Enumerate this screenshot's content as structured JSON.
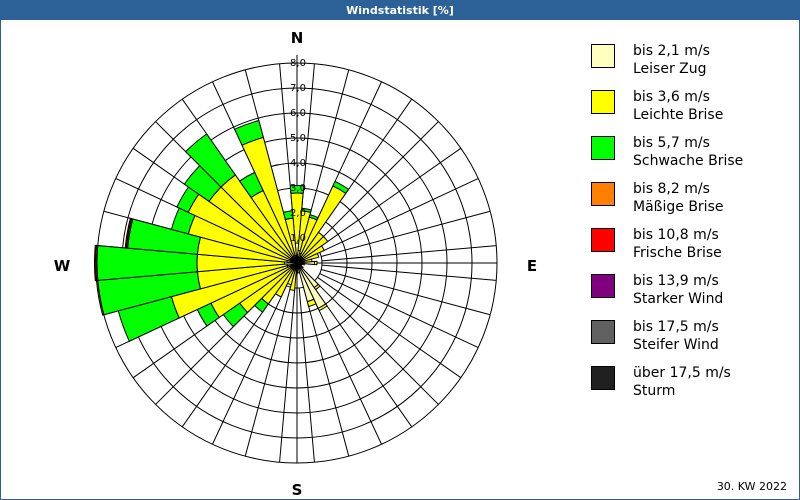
{
  "window": {
    "title": "Windstatistik [%]"
  },
  "footer": "30. KW 2022",
  "chart_data": {
    "type": "windrose",
    "title": "Windstatistik [%]",
    "unit": "%",
    "rmax": 8.0,
    "ring_labels": [
      "1,0",
      "2,0",
      "3,0",
      "4,0",
      "5,0",
      "6,0",
      "7,0",
      "8,0"
    ],
    "compass": {
      "n": "N",
      "e": "E",
      "s": "S",
      "w": "W"
    },
    "classes": [
      {
        "label": "bis 2,1 m/s",
        "name": "Leiser Zug",
        "color": "#ffffc0"
      },
      {
        "label": "bis 3,6 m/s",
        "name": "Leichte Brise",
        "color": "#ffff00"
      },
      {
        "label": "bis 5,7 m/s",
        "name": "Schwache Brise",
        "color": "#00ff00"
      },
      {
        "label": "bis 8,2 m/s",
        "name": "Mäßige Brise",
        "color": "#ff8000"
      },
      {
        "label": "bis 10,8 m/s",
        "name": "Frische Brise",
        "color": "#ff0000"
      },
      {
        "label": "bis 13,9 m/s",
        "name": "Starker Wind",
        "color": "#800080"
      },
      {
        "label": "bis 17,5 m/s",
        "name": "Steifer Wind",
        "color": "#606060"
      },
      {
        "label": "über 17,5 m/s",
        "name": "Sturm",
        "color": "#202020"
      }
    ],
    "directions_deg": [
      0,
      10,
      20,
      30,
      40,
      50,
      60,
      70,
      80,
      90,
      100,
      110,
      120,
      130,
      140,
      150,
      160,
      170,
      180,
      190,
      200,
      210,
      220,
      230,
      240,
      250,
      260,
      270,
      280,
      290,
      300,
      310,
      320,
      330,
      340,
      350
    ],
    "values_by_direction": [
      [
        0.8,
        2.0,
        0.3,
        0,
        0,
        0,
        0,
        0
      ],
      [
        0.5,
        1.6,
        0.1,
        0,
        0,
        0,
        0,
        0
      ],
      [
        0.4,
        1.5,
        0.1,
        0,
        0,
        0,
        0,
        0
      ],
      [
        0.3,
        3.1,
        0.2,
        0,
        0,
        0,
        0,
        0
      ],
      [
        0.3,
        1.2,
        0,
        0,
        0,
        0,
        0,
        0
      ],
      [
        0.3,
        1.2,
        0,
        0,
        0,
        0,
        0,
        0
      ],
      [
        0.3,
        0.9,
        0,
        0,
        0,
        0,
        0,
        0
      ],
      [
        0.3,
        0.6,
        0,
        0,
        0,
        0,
        0,
        0
      ],
      [
        0.3,
        0.3,
        0,
        0,
        0,
        0,
        0,
        0
      ],
      [
        0.7,
        0.1,
        0,
        0,
        0,
        0,
        0,
        0
      ],
      [
        0.3,
        0,
        0,
        0,
        0,
        0,
        0,
        0
      ],
      [
        0.2,
        0,
        0,
        0,
        0,
        0,
        0,
        0
      ],
      [
        0.2,
        0,
        0,
        0,
        0,
        0,
        0,
        0
      ],
      [
        0.3,
        0,
        0,
        0,
        0,
        0,
        0,
        0
      ],
      [
        1.2,
        0.1,
        0,
        0,
        0,
        0,
        0,
        0
      ],
      [
        2.0,
        0.1,
        0,
        0,
        0,
        0,
        0,
        0
      ],
      [
        1.6,
        0.2,
        0,
        0,
        0,
        0,
        0,
        0
      ],
      [
        0.4,
        0,
        0,
        0,
        0,
        0,
        0,
        0
      ],
      [
        0.3,
        0,
        0,
        0,
        0,
        0,
        0,
        0
      ],
      [
        0.3,
        0.8,
        0,
        0,
        0,
        0,
        0,
        0
      ],
      [
        0.3,
        0.6,
        0,
        0,
        0,
        0,
        0,
        0
      ],
      [
        0.3,
        1.2,
        0,
        0,
        0,
        0,
        0,
        0
      ],
      [
        0.3,
        1.7,
        0.4,
        0,
        0,
        0,
        0,
        0
      ],
      [
        0.3,
        2.5,
        0.8,
        0,
        0,
        0,
        0,
        0
      ],
      [
        0.3,
        3.5,
        0.6,
        0,
        0,
        0,
        0,
        0
      ],
      [
        0.4,
        4.8,
        2.2,
        0,
        0,
        0,
        0,
        0
      ],
      [
        0.4,
        3.6,
        4.0,
        0.05,
        0,
        0,
        0,
        0
      ],
      [
        0.5,
        3.5,
        4.0,
        0.05,
        0.05,
        0,
        0,
        0
      ],
      [
        0.4,
        3.6,
        2.8,
        0.05,
        0.05,
        0,
        0,
        0
      ],
      [
        0.3,
        4.2,
        0.7,
        0,
        0,
        0,
        0,
        0
      ],
      [
        0.3,
        4.5,
        0.5,
        0,
        0,
        0,
        0,
        0
      ],
      [
        0.3,
        4.0,
        1.2,
        0,
        0,
        0,
        0,
        0
      ],
      [
        0.3,
        4.0,
        2.0,
        0,
        0,
        0,
        0,
        0
      ],
      [
        0.3,
        2.9,
        0.8,
        0,
        0,
        0,
        0,
        0
      ],
      [
        0.3,
        4.9,
        0.7,
        0,
        0,
        0,
        0,
        0
      ],
      [
        0.3,
        1.5,
        0.3,
        0,
        0,
        0,
        0,
        0
      ]
    ]
  }
}
